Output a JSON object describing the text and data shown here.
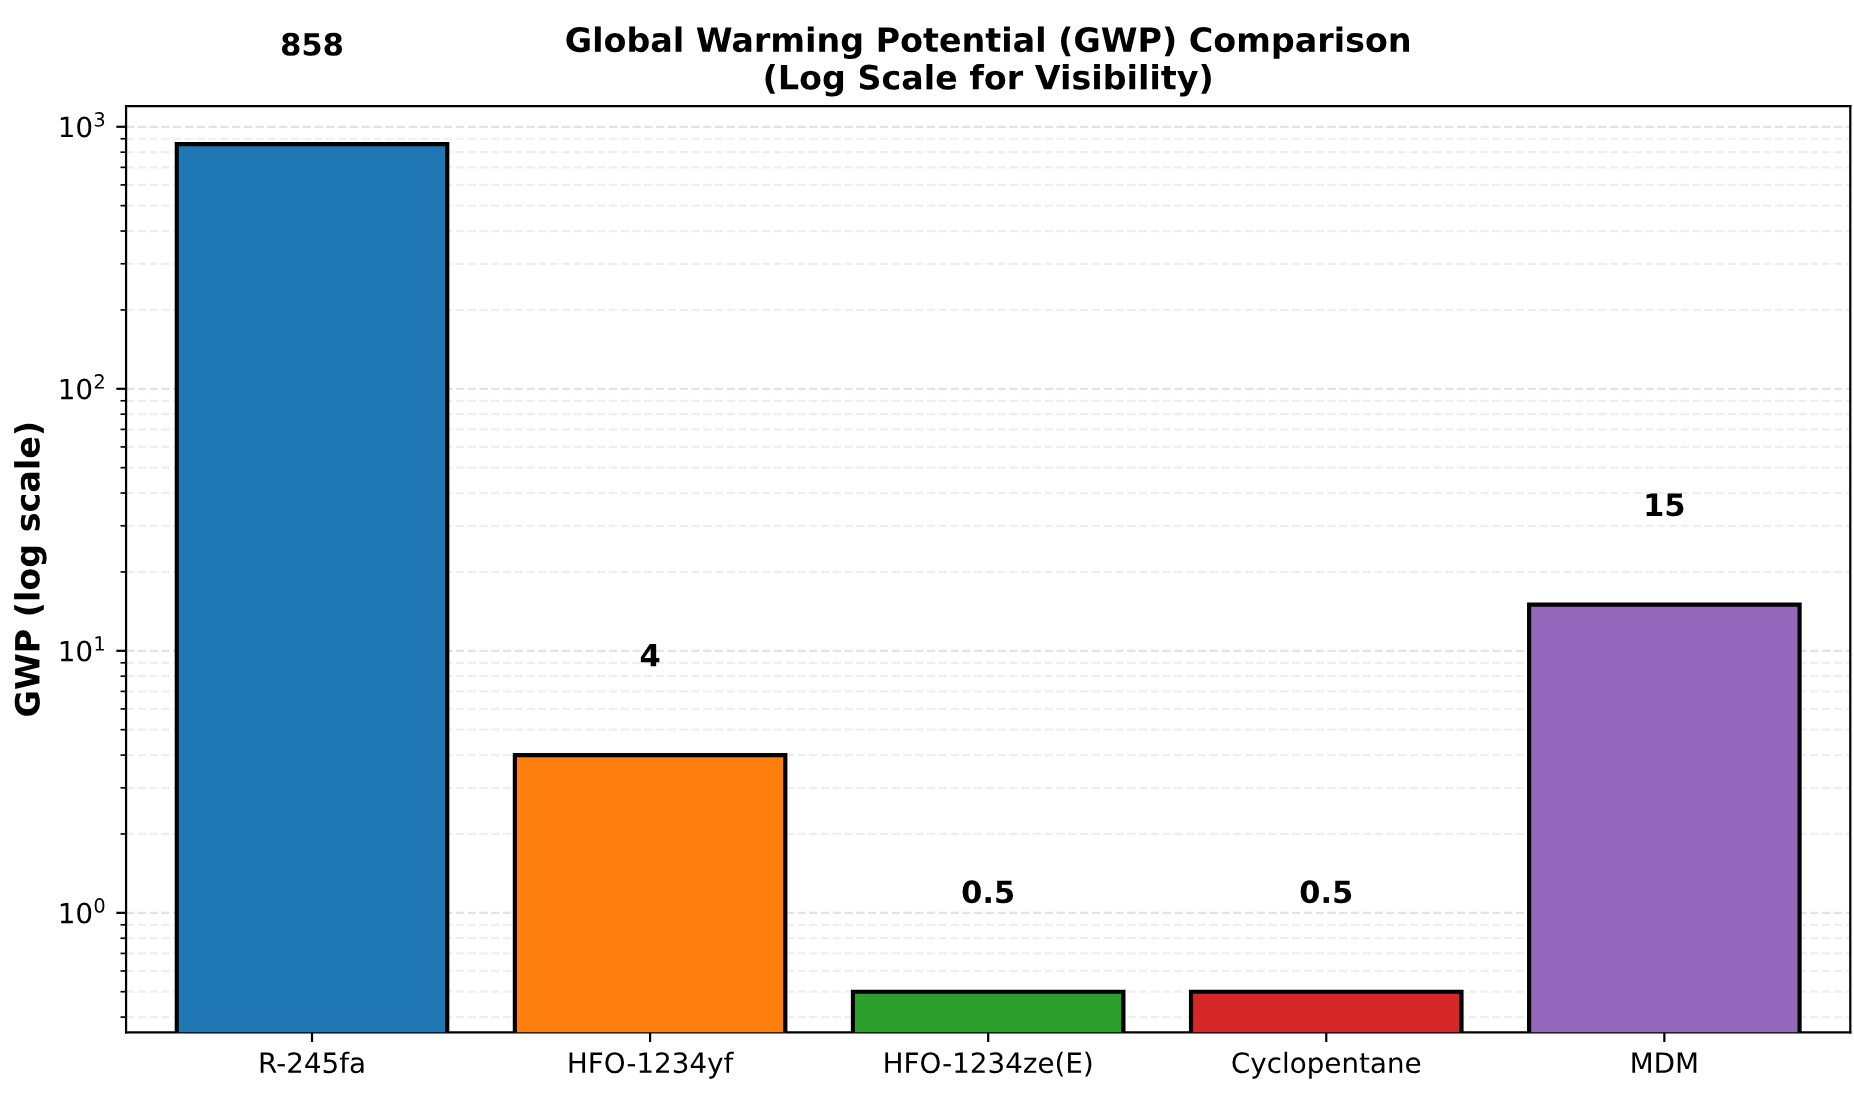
{
  "chart_data": {
    "type": "bar",
    "title": "Global Warming Potential (GWP) Comparison\n(Log Scale for Visibility)",
    "ylabel": "GWP (log scale)",
    "categories": [
      "R-245fa",
      "HFO-1234yf",
      "HFO-1234ze(E)",
      "Cyclopentane",
      "MDM"
    ],
    "values": [
      858,
      4,
      0.5,
      0.5,
      15
    ],
    "colors": [
      "#1f77b4",
      "#ff7f0e",
      "#2ca02c",
      "#d62728",
      "#9467bd"
    ],
    "data_labels": true,
    "log": true,
    "grid": "y",
    "ylim": [
      0.35,
      1200
    ],
    "yticks": [
      {
        "value": 1,
        "label": "10$^{0}$"
      },
      {
        "value": 10,
        "label": "10$^{1}$"
      },
      {
        "value": 100,
        "label": "10$^{2}$"
      },
      {
        "value": 1000,
        "label": "10$^{3}$"
      }
    ]
  }
}
